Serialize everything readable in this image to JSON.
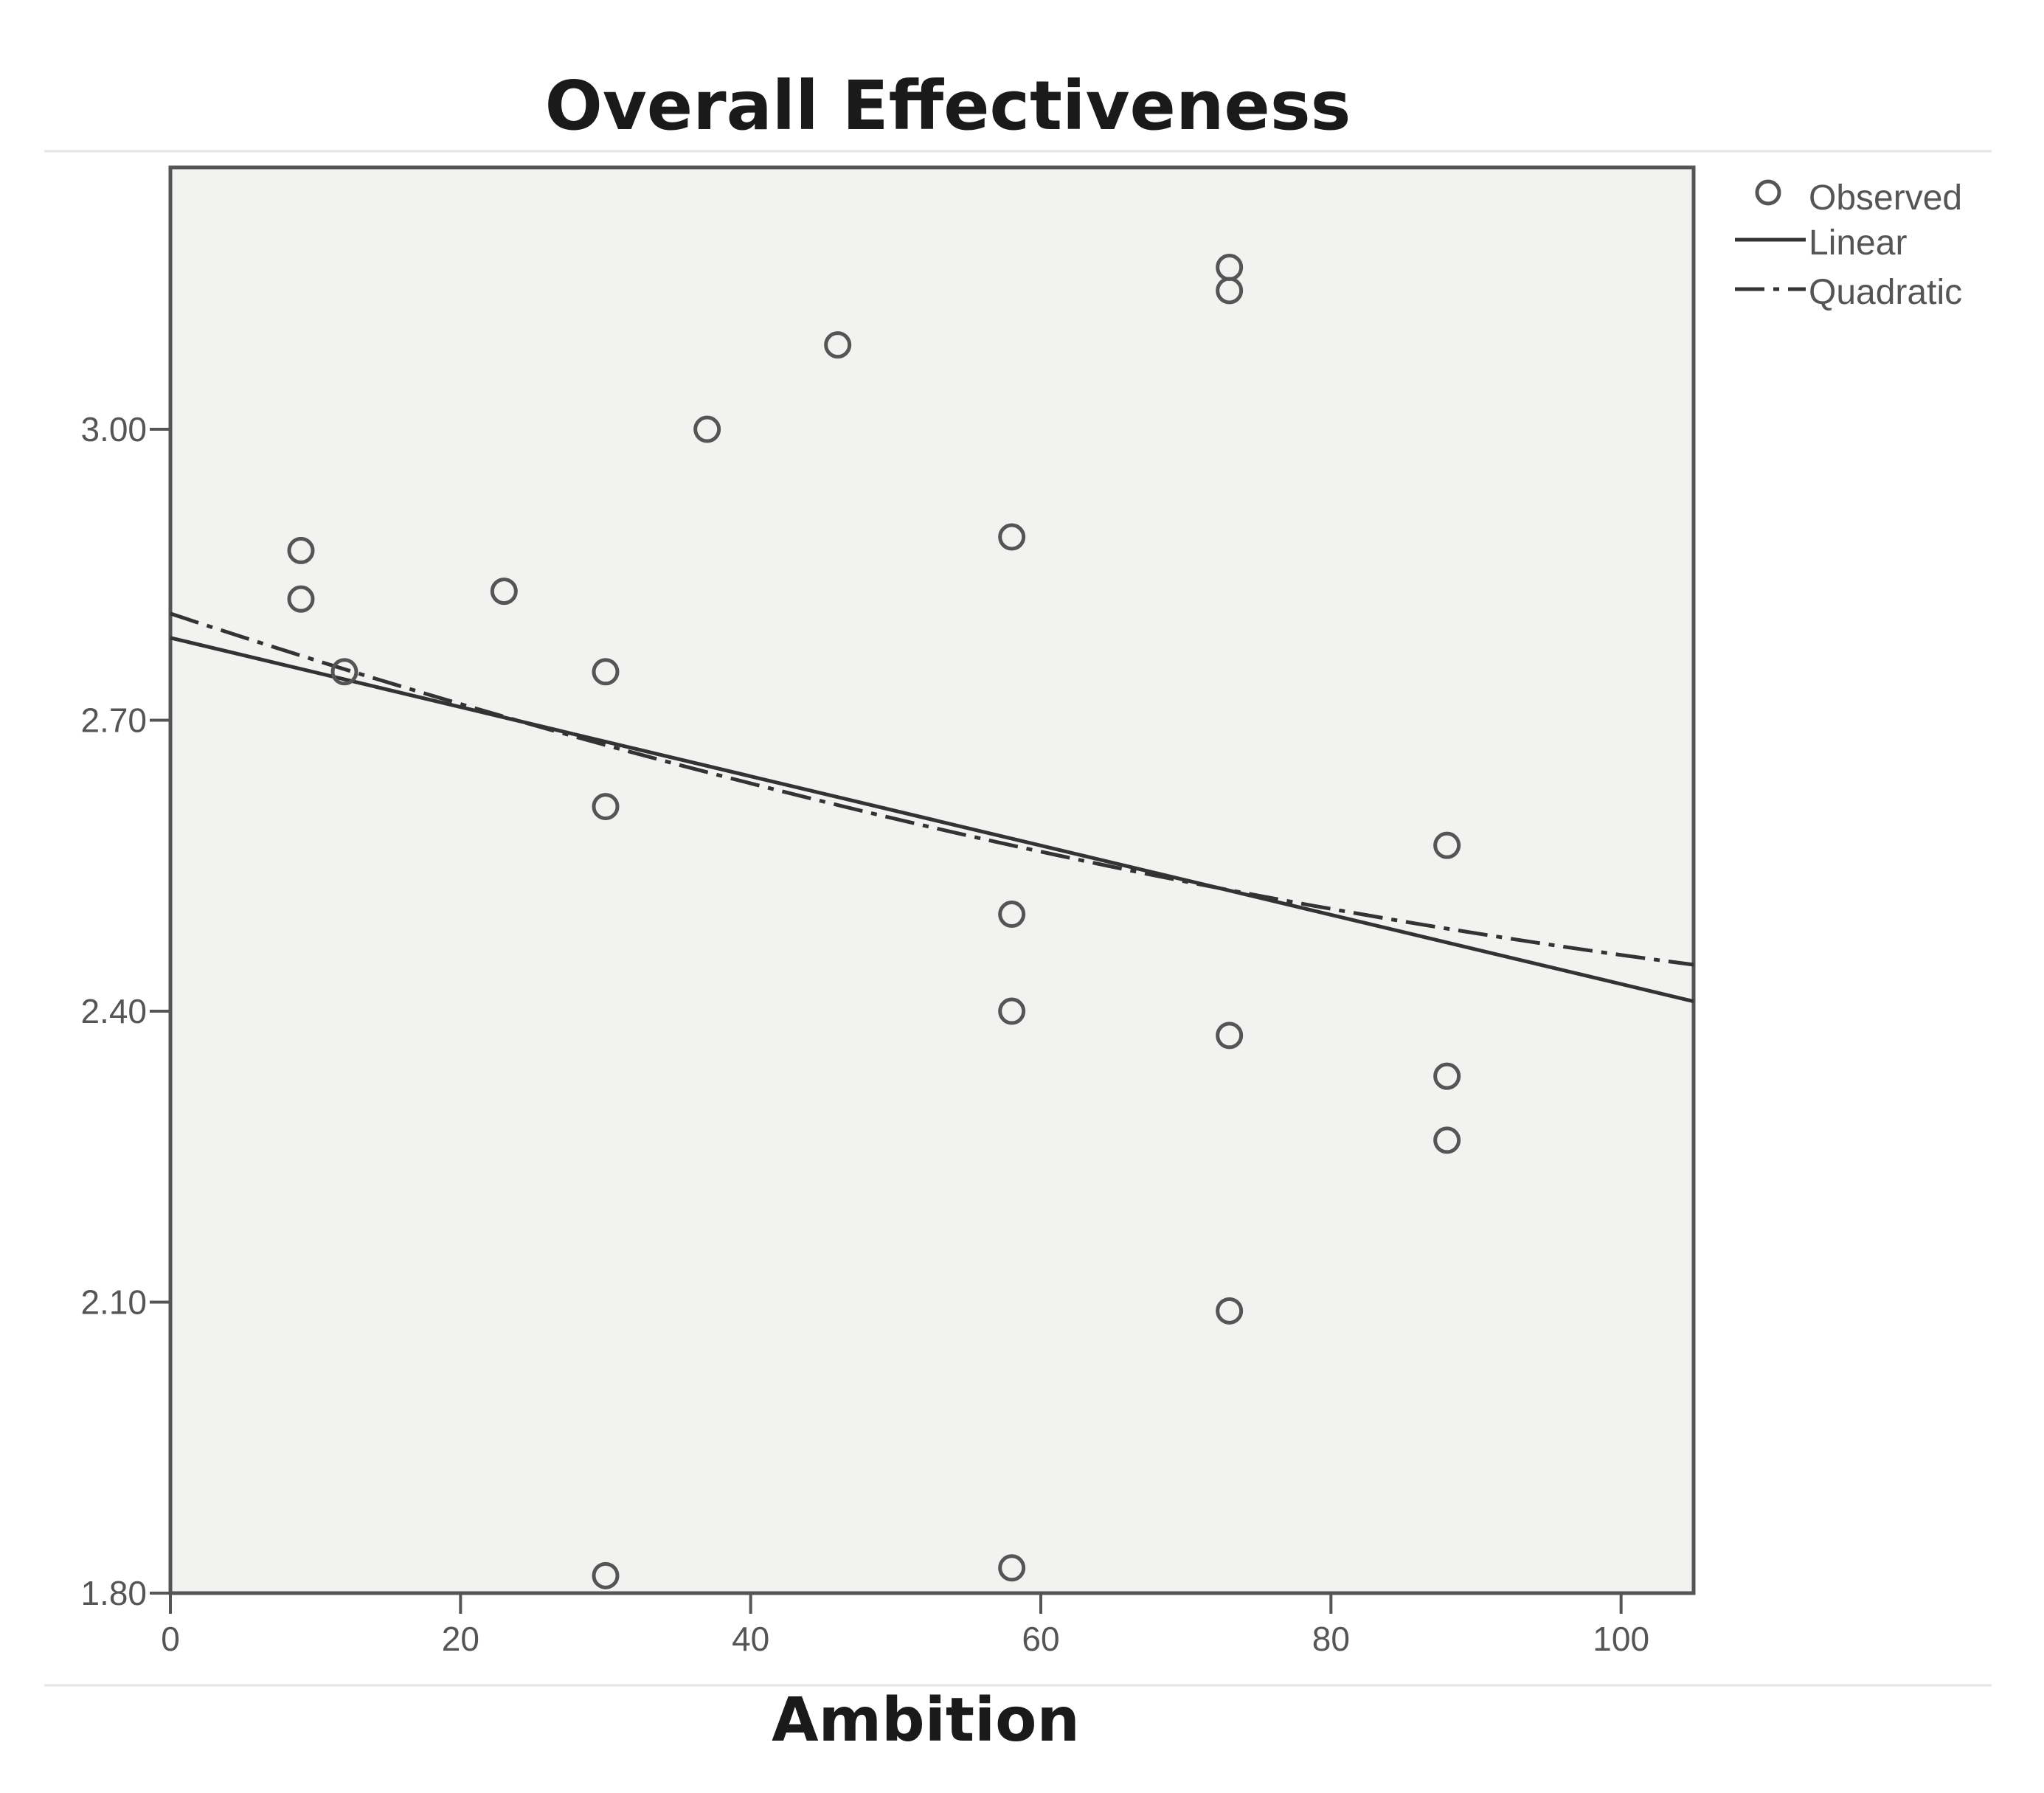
{
  "chart_data": {
    "type": "scatter",
    "title": "Overall Effectiveness",
    "xlabel": "Ambition",
    "ylabel": "",
    "xlim": [
      0,
      105
    ],
    "ylim": [
      1.8,
      3.27
    ],
    "x_ticks": [
      0,
      20,
      40,
      60,
      80,
      100
    ],
    "x_tick_labels": [
      "0",
      "20",
      "40",
      "60",
      "80",
      "100"
    ],
    "y_ticks": [
      1.8,
      2.1,
      2.4,
      2.7,
      3.0
    ],
    "y_tick_labels": [
      "1.80",
      "2.10",
      "2.40",
      "2.70",
      "3.00"
    ],
    "grid": false,
    "legend_position": "top-right",
    "series": [
      {
        "name": "Observed",
        "kind": "points",
        "x": [
          9,
          9,
          12,
          23,
          30,
          30,
          30,
          37,
          46,
          58,
          58,
          58,
          58,
          73,
          73,
          73,
          73,
          88,
          88,
          88
        ],
        "y": [
          2.875,
          2.825,
          2.75,
          2.833,
          2.75,
          2.611,
          1.818,
          3.0,
          3.087,
          2.889,
          2.5,
          2.4,
          1.826,
          3.167,
          3.143,
          2.375,
          2.091,
          2.571,
          2.333,
          2.267
        ]
      },
      {
        "name": "Linear",
        "kind": "line",
        "style": "solid",
        "intercept": 2.785,
        "slope": -0.00357
      },
      {
        "name": "Quadratic",
        "kind": "line",
        "style": "dash-dot",
        "a": 2.81,
        "b": -0.00495,
        "c": 1.43e-05
      }
    ]
  }
}
